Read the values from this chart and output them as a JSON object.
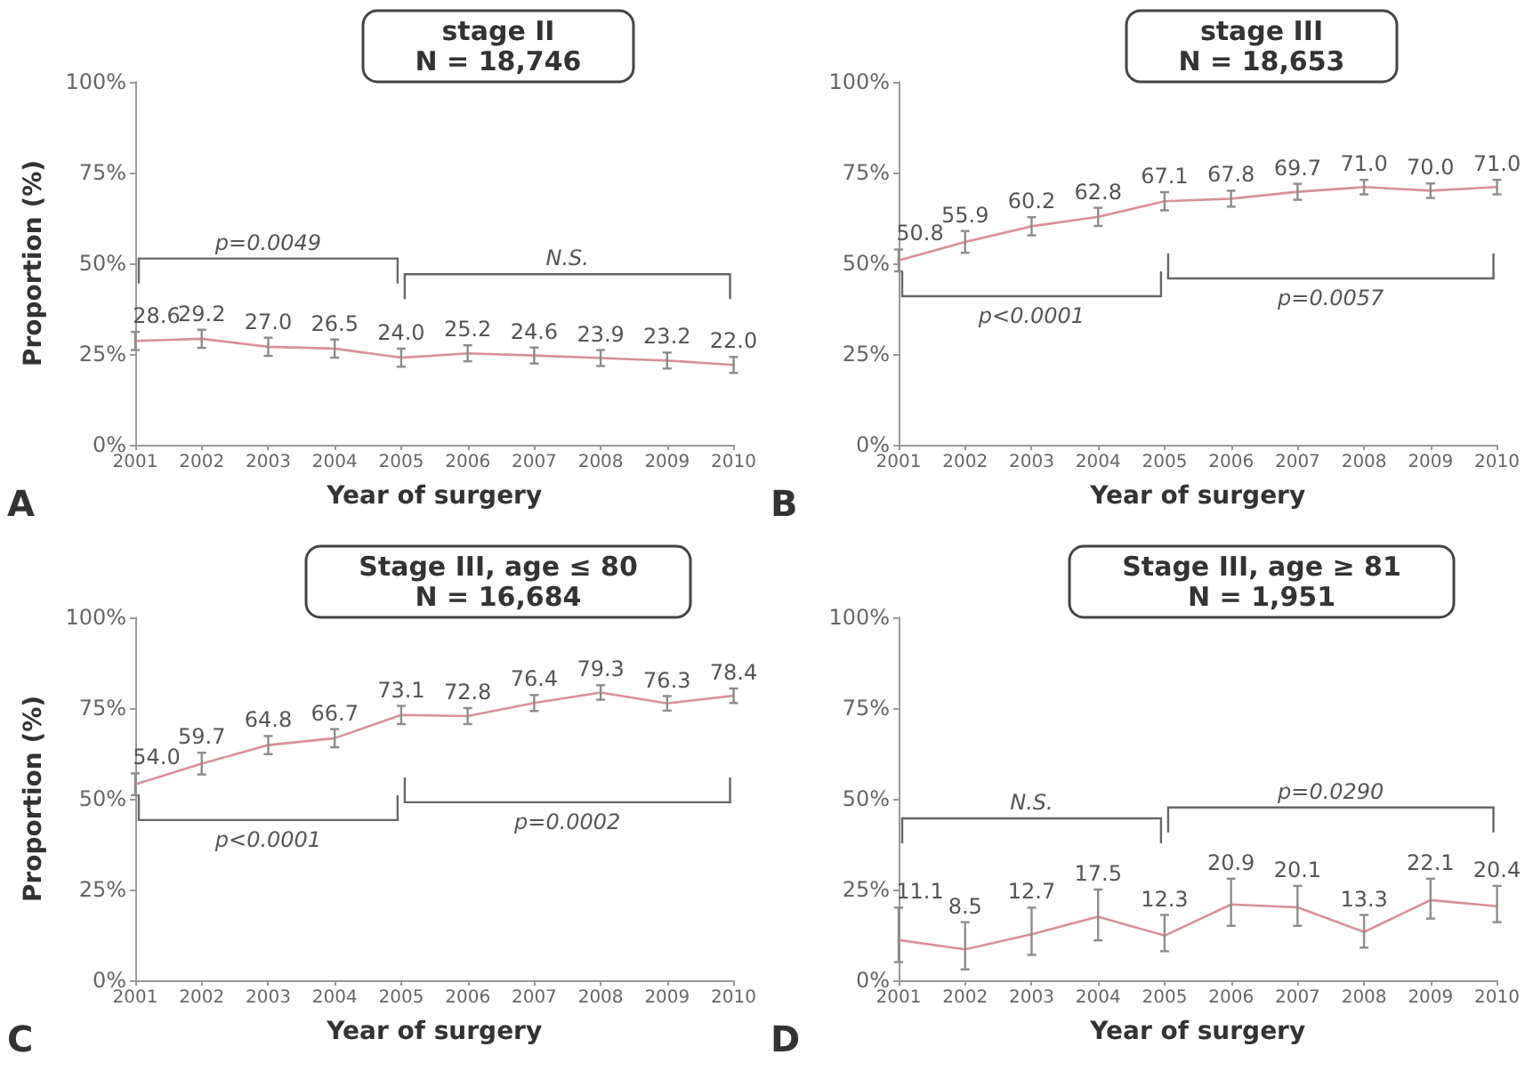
{
  "chart_data": [
    {
      "type": "line",
      "title": "stage II",
      "subtitle": "N = 18,746",
      "xlabel": "Year of surgery",
      "ylabel": "Proportion (%)",
      "x": [
        2001,
        2002,
        2003,
        2004,
        2005,
        2006,
        2007,
        2008,
        2009,
        2010
      ],
      "series": [
        {
          "color": "#d9909a",
          "values": [
            28.6,
            29.2,
            27.0,
            26.5,
            24.0,
            25.2,
            24.6,
            23.9,
            23.2,
            22.0
          ],
          "value_labels": [
            "28.6",
            "29.2",
            "27.0",
            "26.5",
            "24.0",
            "25.2",
            "24.6",
            "23.9",
            "23.2",
            "22.0"
          ],
          "errors": [
            2.5,
            2.5,
            2.5,
            2.5,
            2.5,
            2.2,
            2.2,
            2.2,
            2.2,
            2.2
          ]
        }
      ],
      "xlim": [
        2001,
        2010
      ],
      "xticks": [
        2001,
        2002,
        2003,
        2004,
        2005,
        2006,
        2007,
        2008,
        2009,
        2010
      ],
      "ylim": [
        0,
        100
      ],
      "yticks": [
        {
          "value": 0,
          "label": "0%"
        },
        {
          "value": 25,
          "label": "25%"
        },
        {
          "value": 50,
          "label": "50%"
        },
        {
          "value": 75,
          "label": "75%"
        },
        {
          "value": 100,
          "label": "100%"
        }
      ],
      "annotations": [
        "A",
        "p=0.0049",
        "N.S."
      ],
      "grid": false,
      "marker": "none"
    },
    {
      "type": "line",
      "title": "stage III",
      "subtitle": "N = 18,653",
      "xlabel": "Year of surgery",
      "x": [
        2001,
        2002,
        2003,
        2004,
        2005,
        2006,
        2007,
        2008,
        2009,
        2010
      ],
      "series": [
        {
          "color": "#d9909a",
          "values": [
            50.8,
            55.9,
            60.2,
            62.8,
            67.1,
            67.8,
            69.7,
            71.0,
            70.0,
            71.0
          ],
          "value_labels": [
            "50.8",
            "55.9",
            "60.2",
            "62.8",
            "67.1",
            "67.8",
            "69.7",
            "71.0",
            "70.0",
            "71.0"
          ],
          "errors": [
            3,
            3,
            2.5,
            2.5,
            2.5,
            2.2,
            2.2,
            2,
            2,
            2
          ]
        }
      ],
      "xlim": [
        2001,
        2010
      ],
      "xticks": [
        2001,
        2002,
        2003,
        2004,
        2005,
        2006,
        2007,
        2008,
        2009,
        2010
      ],
      "ylim": [
        0,
        100
      ],
      "yticks": [
        {
          "value": 0,
          "label": "0%"
        },
        {
          "value": 25,
          "label": "25%"
        },
        {
          "value": 50,
          "label": "50%"
        },
        {
          "value": 75,
          "label": "75%"
        },
        {
          "value": 100,
          "label": "100%"
        }
      ],
      "annotations": [
        "B",
        "p<0.0001",
        "p=0.0057"
      ],
      "grid": false,
      "marker": "none"
    },
    {
      "type": "line",
      "title": "Stage III, age ≤ 80",
      "subtitle": "N = 16,684",
      "xlabel": "Year of surgery",
      "ylabel": "Proportion (%)",
      "x": [
        2001,
        2002,
        2003,
        2004,
        2005,
        2006,
        2007,
        2008,
        2009,
        2010
      ],
      "series": [
        {
          "color": "#d9909a",
          "values": [
            54.0,
            59.7,
            64.8,
            66.7,
            73.1,
            72.8,
            76.4,
            79.3,
            76.3,
            78.4
          ],
          "value_labels": [
            "54.0",
            "59.7",
            "64.8",
            "66.7",
            "73.1",
            "72.8",
            "76.4",
            "79.3",
            "76.3",
            "78.4"
          ],
          "errors": [
            3,
            3,
            2.5,
            2.5,
            2.5,
            2.2,
            2.2,
            2,
            2,
            2
          ]
        }
      ],
      "xlim": [
        2001,
        2010
      ],
      "xticks": [
        2001,
        2002,
        2003,
        2004,
        2005,
        2006,
        2007,
        2008,
        2009,
        2010
      ],
      "ylim": [
        0,
        100
      ],
      "yticks": [
        {
          "value": 0,
          "label": "0%"
        },
        {
          "value": 25,
          "label": "25%"
        },
        {
          "value": 50,
          "label": "50%"
        },
        {
          "value": 75,
          "label": "75%"
        },
        {
          "value": 100,
          "label": "100%"
        }
      ],
      "annotations": [
        "C",
        "p<0.0001",
        "p=0.0002"
      ],
      "grid": false,
      "marker": "none"
    },
    {
      "type": "line",
      "title": "Stage III, age ≥ 81",
      "subtitle": "N = 1,951",
      "xlabel": "Year of surgery",
      "x": [
        2001,
        2002,
        2003,
        2004,
        2005,
        2006,
        2007,
        2008,
        2009,
        2010
      ],
      "series": [
        {
          "color": "#d9909a",
          "values": [
            11.1,
            8.5,
            12.7,
            17.5,
            12.3,
            20.9,
            20.1,
            13.3,
            22.1,
            20.4
          ],
          "value_labels": [
            "11.1",
            "8.5",
            "12.7",
            "17.5",
            "12.3",
            "20.9",
            "20.1",
            "13.3",
            "22.1",
            "20.4"
          ],
          "errors": [
            [
              5,
              20
            ],
            [
              3,
              16
            ],
            [
              7,
              20
            ],
            [
              11,
              25
            ],
            [
              8,
              18
            ],
            [
              15,
              28
            ],
            [
              15,
              26
            ],
            [
              9,
              18
            ],
            [
              17,
              28
            ],
            [
              16,
              26
            ]
          ]
        }
      ],
      "xlim": [
        2001,
        2010
      ],
      "xticks": [
        2001,
        2002,
        2003,
        2004,
        2005,
        2006,
        2007,
        2008,
        2009,
        2010
      ],
      "ylim": [
        0,
        100
      ],
      "yticks": [
        {
          "value": 0,
          "label": "0%"
        },
        {
          "value": 25,
          "label": "25%"
        },
        {
          "value": 50,
          "label": "50%"
        },
        {
          "value": 75,
          "label": "75%"
        },
        {
          "value": 100,
          "label": "100%"
        }
      ],
      "annotations": [
        "D",
        "N.S.",
        "p=0.0290"
      ],
      "grid": false,
      "marker": "none"
    }
  ]
}
